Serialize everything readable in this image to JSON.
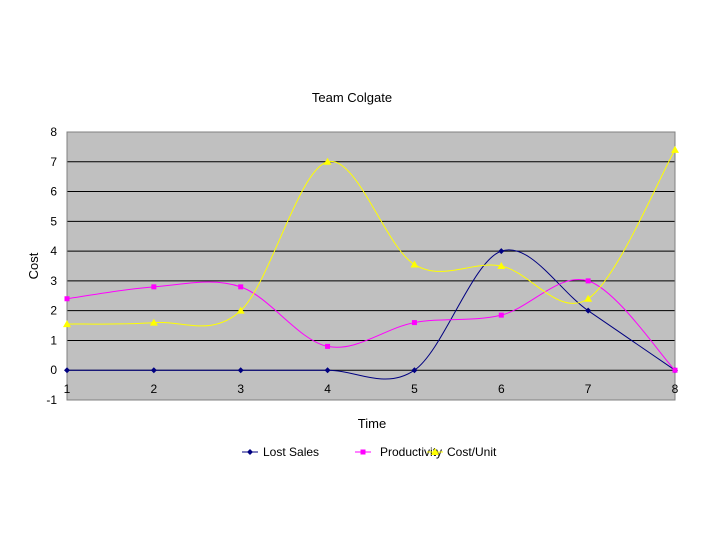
{
  "chart_data": {
    "type": "line",
    "title": "Team Colgate",
    "xlabel": "Time",
    "ylabel": "Cost",
    "x": [
      1,
      2,
      3,
      4,
      5,
      6,
      7,
      8
    ],
    "xlim": [
      1,
      8
    ],
    "ylim": [
      -1,
      8
    ],
    "y_ticks": [
      -1,
      0,
      1,
      2,
      3,
      4,
      5,
      6,
      7,
      8
    ],
    "grid": true,
    "legend_position": "bottom",
    "plot_background": "#c0c0c0",
    "smoothed": true,
    "series": [
      {
        "name": "Lost Sales",
        "marker": "diamond",
        "color": "#000080",
        "values": [
          0,
          0,
          0,
          0,
          0,
          4,
          2,
          0
        ]
      },
      {
        "name": "Productivity",
        "marker": "square",
        "color": "#ff00ff",
        "values": [
          2.4,
          2.8,
          2.8,
          0.8,
          1.6,
          1.85,
          3,
          0
        ]
      },
      {
        "name": "Cost/Unit",
        "marker": "triangle",
        "color": "#ffff00",
        "values": [
          1.55,
          1.6,
          2,
          7,
          3.55,
          3.5,
          2.4,
          7.4
        ]
      }
    ]
  }
}
